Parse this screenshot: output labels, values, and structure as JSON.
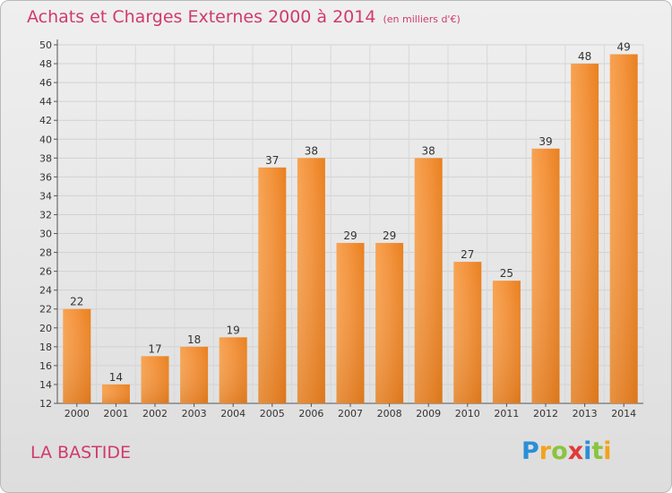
{
  "chart_data": {
    "type": "bar",
    "title": "Achats et Charges Externes 2000 à 2014",
    "subtitle": "(en milliers d'€)",
    "categories": [
      "2000",
      "2001",
      "2002",
      "2003",
      "2004",
      "2005",
      "2006",
      "2007",
      "2008",
      "2009",
      "2010",
      "2011",
      "2012",
      "2013",
      "2014"
    ],
    "values": [
      22,
      14,
      17,
      18,
      19,
      37,
      38,
      29,
      29,
      38,
      27,
      25,
      39,
      48,
      49
    ],
    "ylim": [
      12,
      50
    ],
    "yticks": [
      12,
      14,
      16,
      18,
      20,
      22,
      24,
      26,
      28,
      30,
      32,
      34,
      36,
      38,
      40,
      42,
      44,
      46,
      48,
      50
    ],
    "grid": true,
    "bar_color": "#f0862a"
  },
  "place": "LA BASTIDE",
  "logo": {
    "letters": [
      "P",
      "r",
      "o",
      "x",
      "i",
      "t",
      "i"
    ],
    "colors": [
      "#2b8fd6",
      "#f3a21a",
      "#8ac43f",
      "#e23a3a",
      "#2b8fd6",
      "#8ac43f",
      "#f3a21a"
    ]
  }
}
